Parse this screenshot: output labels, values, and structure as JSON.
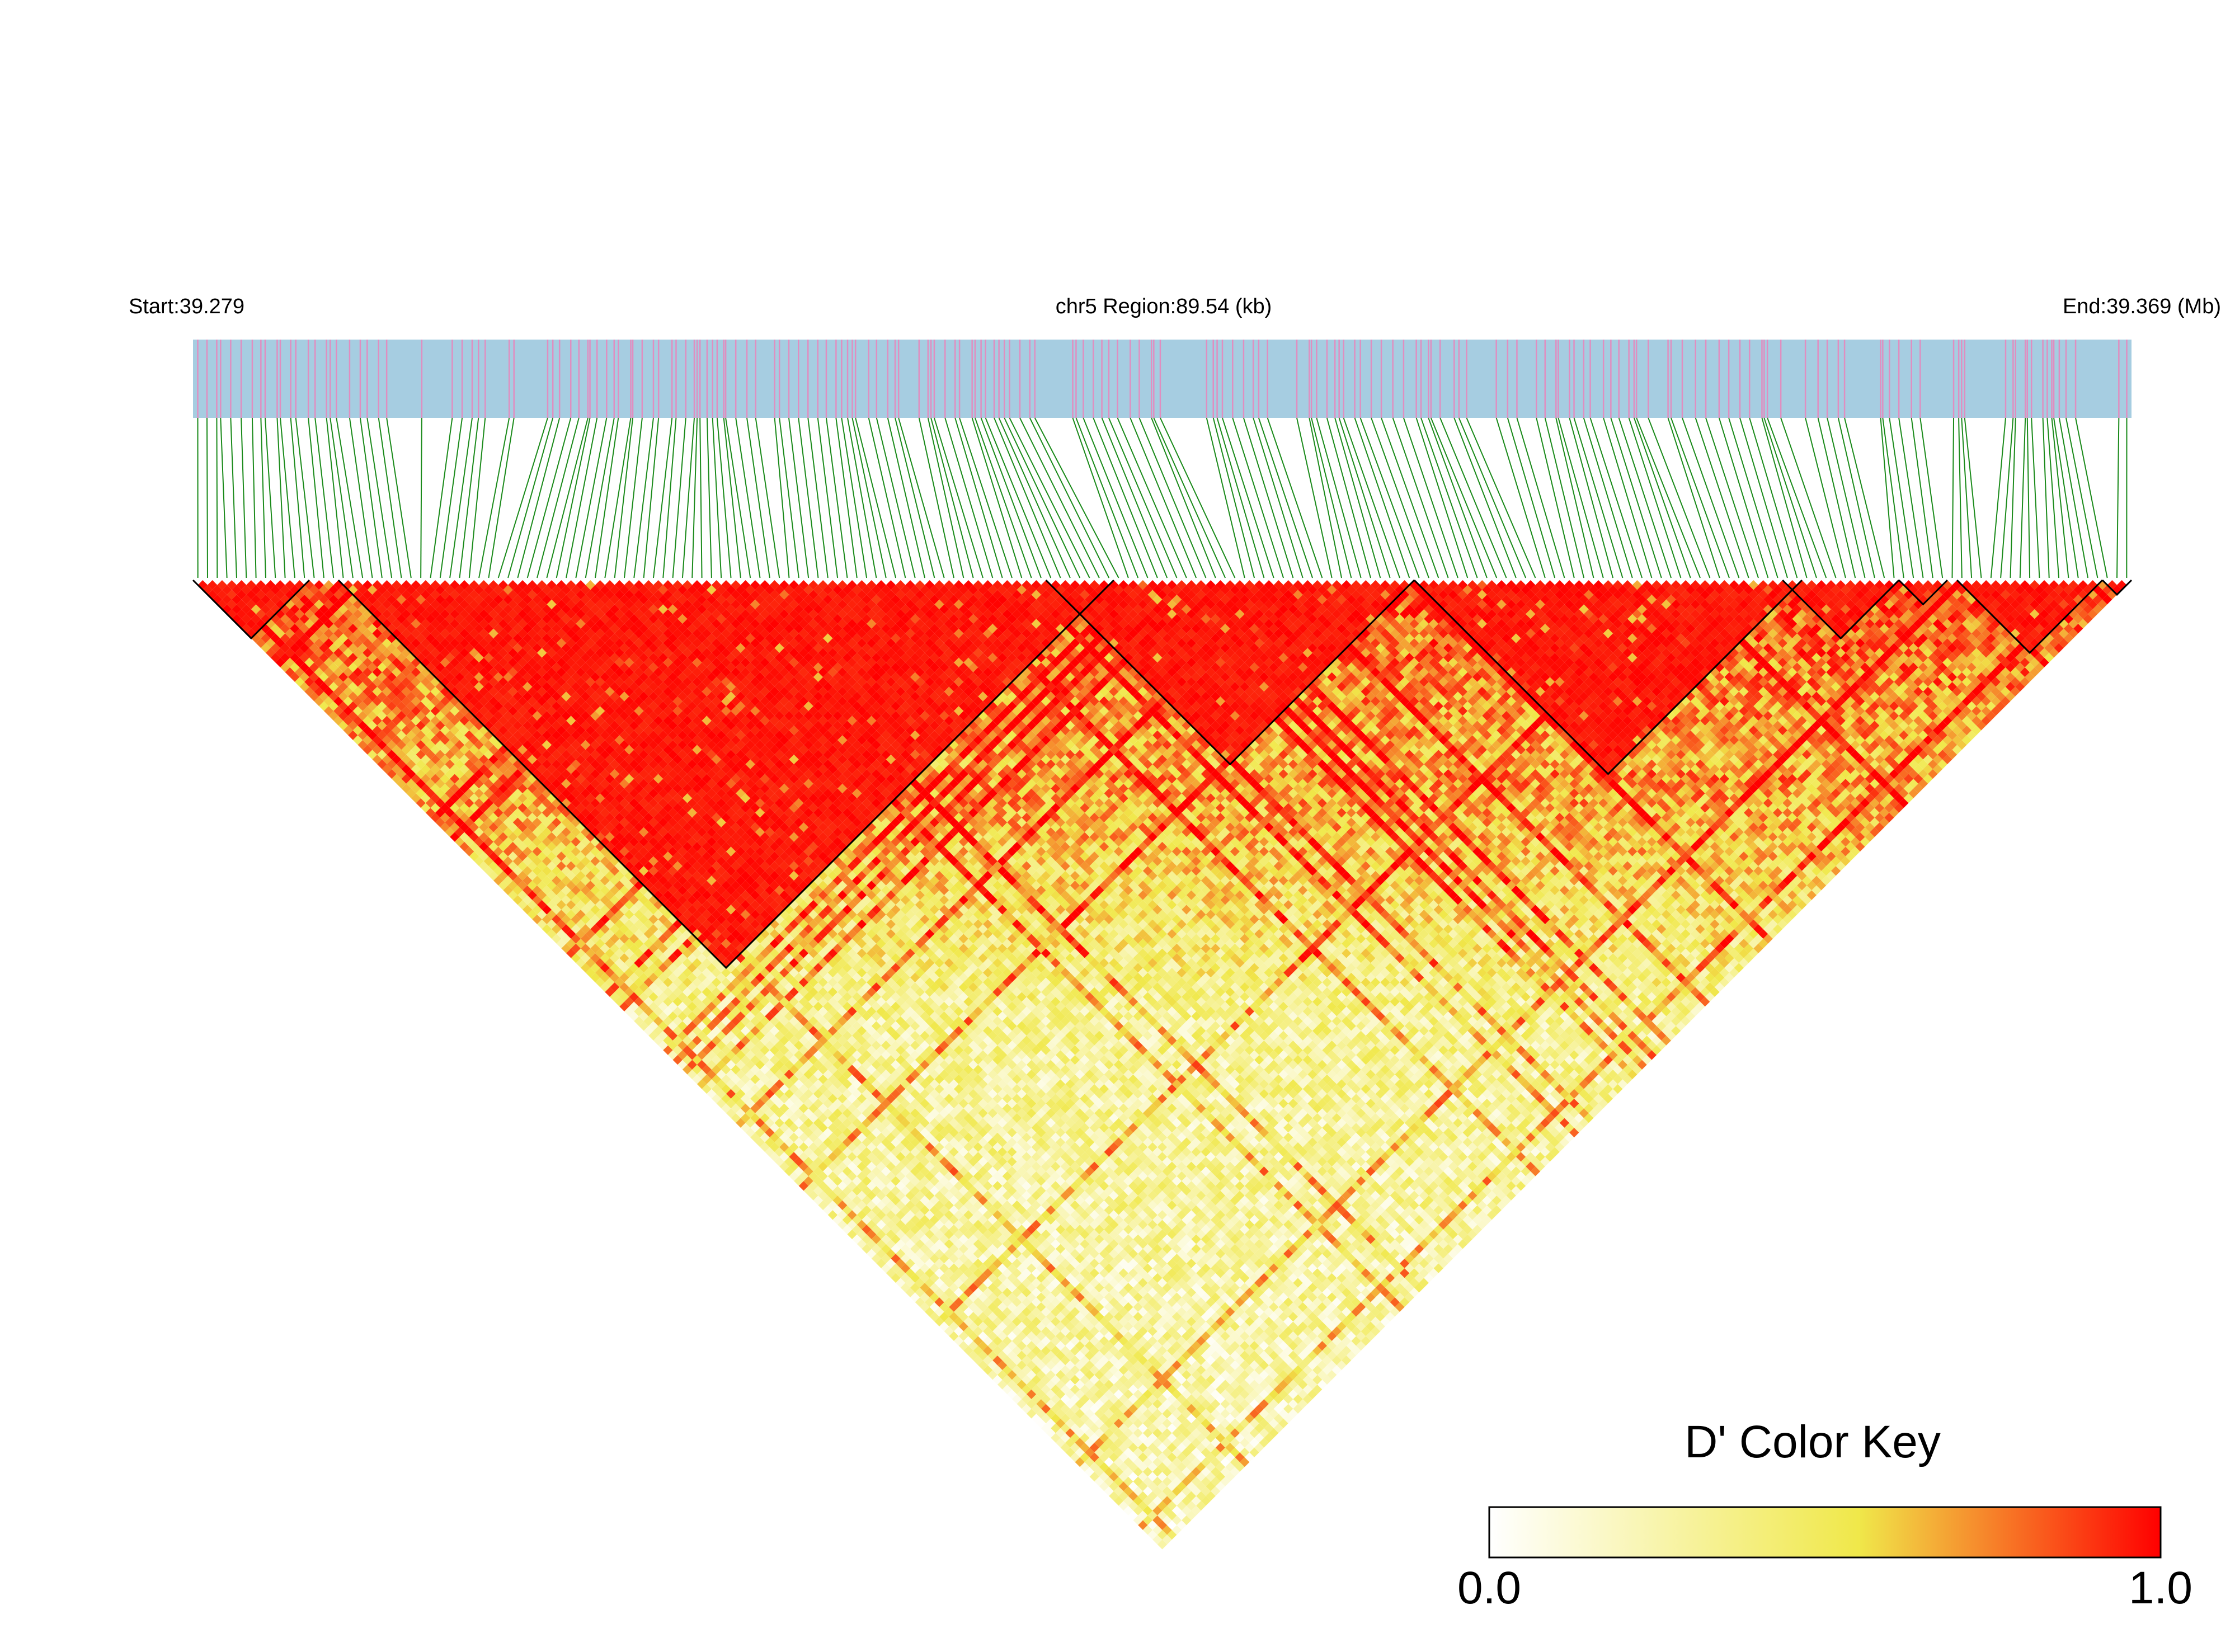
{
  "header": {
    "start_label": "Start:39.279",
    "region_label": "chr5 Region:89.54 (kb)",
    "end_label": "End:39.369 (Mb)"
  },
  "colors": {
    "track_background": "#a6cde1",
    "snp_tick": "#e08ec0",
    "connector_line": "#1a8a1a",
    "block_outline": "#000000",
    "scale_low": "#ffffff",
    "scale_mid": "#f0e84a",
    "scale_high": "#ff0000"
  },
  "color_key": {
    "title": "D' Color Key",
    "min_label": "0.0",
    "max_label": "1.0",
    "min": 0.0,
    "max": 1.0
  },
  "chart_data": {
    "type": "heatmap",
    "title": "",
    "xlabel": "",
    "ylabel": "",
    "chromosome": "chr5",
    "region_start_mb": 39.279,
    "region_end_mb": 39.369,
    "region_length_kb": 89.54,
    "metric": "D'",
    "value_range": [
      0.0,
      1.0
    ],
    "snp_count": 200,
    "ld_blocks": [
      {
        "start_index": 0,
        "end_index": 11
      },
      {
        "start_index": 15,
        "end_index": 94
      },
      {
        "start_index": 88,
        "end_index": 125
      },
      {
        "start_index": 126,
        "end_index": 165
      },
      {
        "start_index": 164,
        "end_index": 175
      },
      {
        "start_index": 176,
        "end_index": 180
      },
      {
        "start_index": 182,
        "end_index": 196
      },
      {
        "start_index": 197,
        "end_index": 199
      }
    ],
    "note_values": "Pairwise D' values; high (near 1.0) near the diagonal and within blocks, decaying toward 0.0 for distant SNP pairs."
  }
}
